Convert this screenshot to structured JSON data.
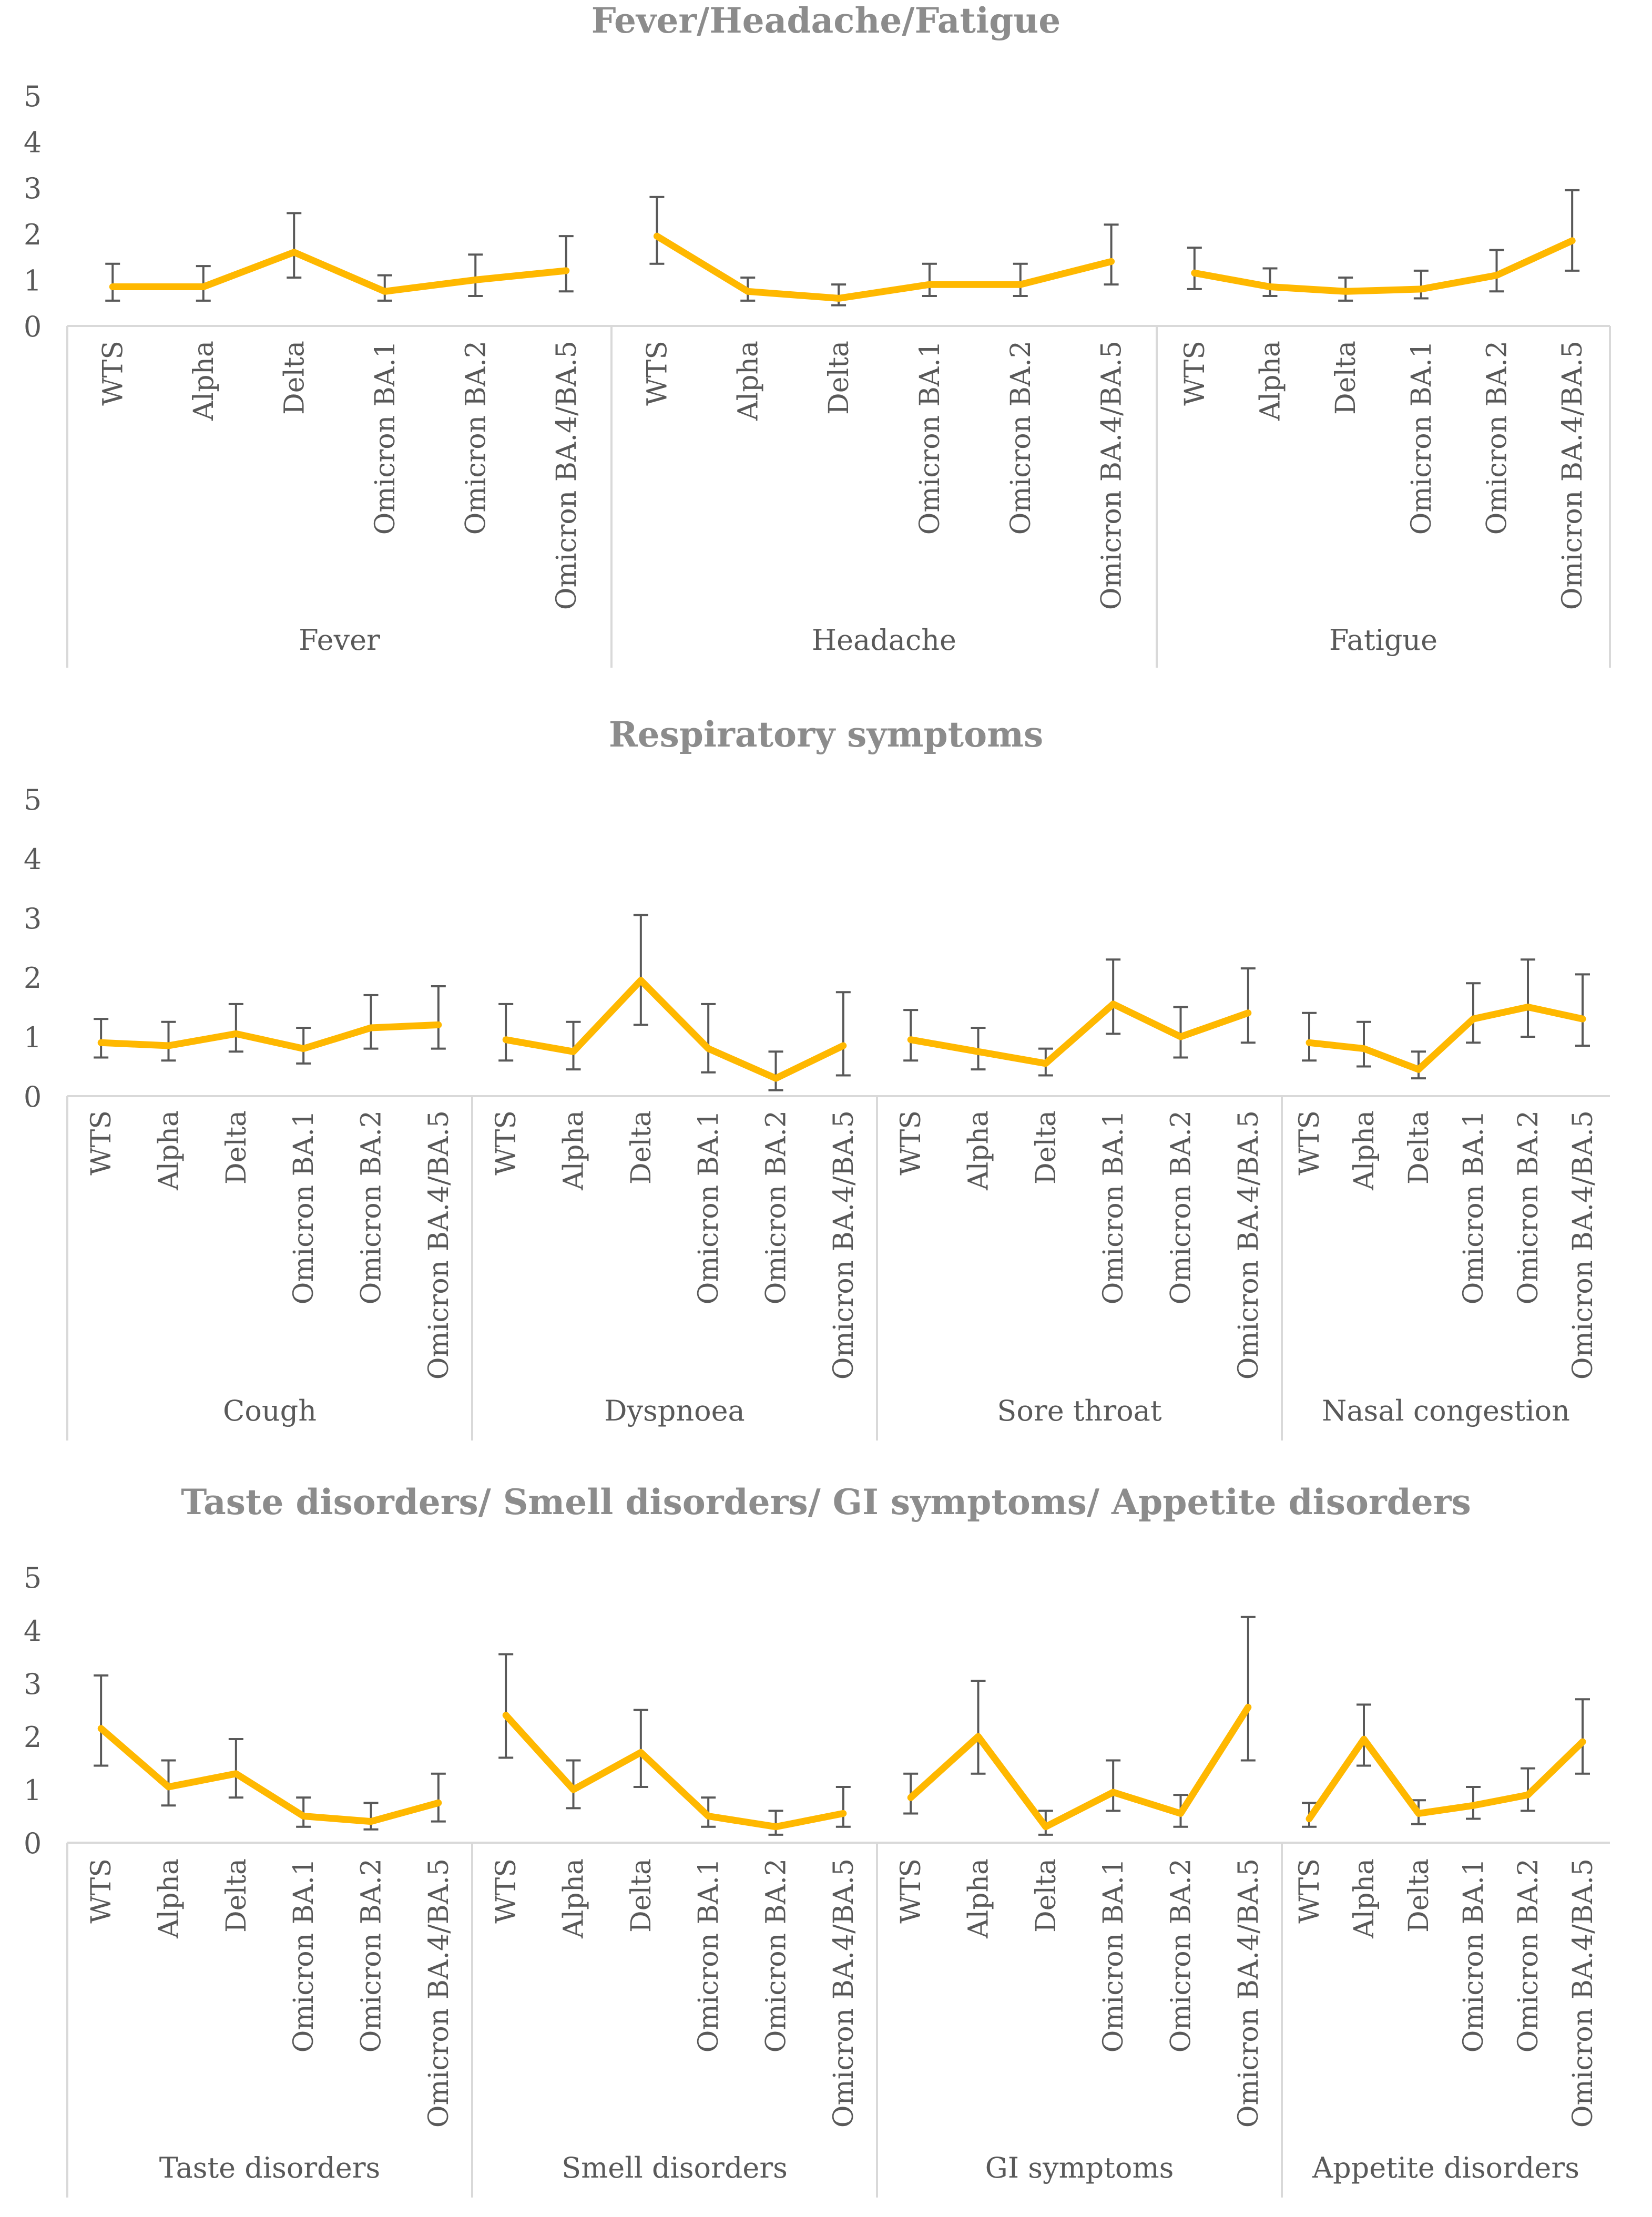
{
  "chart_data": [
    {
      "type": "line",
      "title": "Fever/Headache/Fatigue",
      "ylim": [
        0,
        5
      ],
      "yticks": [
        0,
        1,
        2,
        3,
        4,
        5
      ],
      "line_color": "#FFB800",
      "errorbar_color": "#595959",
      "subcategories": [
        "WTS",
        "Alpha",
        "Delta",
        "Omicron BA.1",
        "Omicron BA.2",
        "Omicron BA.4/BA.5"
      ],
      "groups": [
        {
          "name": "Fever",
          "values": [
            0.85,
            0.85,
            1.6,
            0.75,
            1.0,
            1.2
          ],
          "err_low": [
            0.55,
            0.55,
            1.05,
            0.55,
            0.65,
            0.75
          ],
          "err_high": [
            1.35,
            1.3,
            2.45,
            1.1,
            1.55,
            1.95
          ]
        },
        {
          "name": "Headache",
          "values": [
            1.95,
            0.75,
            0.6,
            0.9,
            0.9,
            1.4
          ],
          "err_low": [
            1.35,
            0.55,
            0.45,
            0.65,
            0.65,
            0.9
          ],
          "err_high": [
            2.8,
            1.05,
            0.9,
            1.35,
            1.35,
            2.2
          ]
        },
        {
          "name": "Fatigue",
          "values": [
            1.15,
            0.85,
            0.75,
            0.8,
            1.1,
            1.85
          ],
          "err_low": [
            0.8,
            0.65,
            0.55,
            0.6,
            0.75,
            1.2
          ],
          "err_high": [
            1.7,
            1.25,
            1.05,
            1.2,
            1.65,
            2.95
          ]
        }
      ]
    },
    {
      "type": "line",
      "title": "Respiratory symptoms",
      "ylim": [
        0,
        5
      ],
      "yticks": [
        0,
        1,
        2,
        3,
        4,
        5
      ],
      "line_color": "#FFB800",
      "errorbar_color": "#595959",
      "subcategories": [
        "WTS",
        "Alpha",
        "Delta",
        "Omicron BA.1",
        "Omicron BA.2",
        "Omicron BA.4/BA.5"
      ],
      "groups": [
        {
          "name": "Cough",
          "values": [
            0.9,
            0.85,
            1.05,
            0.8,
            1.15,
            1.2
          ],
          "err_low": [
            0.65,
            0.6,
            0.75,
            0.55,
            0.8,
            0.8
          ],
          "err_high": [
            1.3,
            1.25,
            1.55,
            1.15,
            1.7,
            1.85
          ]
        },
        {
          "name": "Dyspnoea",
          "values": [
            0.95,
            0.75,
            1.95,
            0.8,
            0.3,
            0.85
          ],
          "err_low": [
            0.6,
            0.45,
            1.2,
            0.4,
            0.1,
            0.35
          ],
          "err_high": [
            1.55,
            1.25,
            3.05,
            1.55,
            0.75,
            1.75
          ]
        },
        {
          "name": "Sore throat",
          "values": [
            0.95,
            0.75,
            0.55,
            1.55,
            1.0,
            1.4
          ],
          "err_low": [
            0.6,
            0.45,
            0.35,
            1.05,
            0.65,
            0.9
          ],
          "err_high": [
            1.45,
            1.15,
            0.8,
            2.3,
            1.5,
            2.15
          ]
        },
        {
          "name": "Nasal congestion",
          "values": [
            0.9,
            0.8,
            0.45,
            1.3,
            1.5,
            1.3
          ],
          "err_low": [
            0.6,
            0.5,
            0.3,
            0.9,
            1.0,
            0.85
          ],
          "err_high": [
            1.4,
            1.25,
            0.75,
            1.9,
            2.3,
            2.05
          ]
        }
      ]
    },
    {
      "type": "line",
      "title": "Taste disorders/ Smell disorders/ GI symptoms/ Appetite disorders",
      "ylim": [
        0,
        5
      ],
      "yticks": [
        0,
        1,
        2,
        3,
        4,
        5
      ],
      "line_color": "#FFB800",
      "errorbar_color": "#595959",
      "subcategories": [
        "WTS",
        "Alpha",
        "Delta",
        "Omicron BA.1",
        "Omicron BA.2",
        "Omicron BA.4/BA.5"
      ],
      "groups": [
        {
          "name": "Taste disorders",
          "values": [
            2.15,
            1.05,
            1.3,
            0.5,
            0.4,
            0.75
          ],
          "err_low": [
            1.45,
            0.7,
            0.85,
            0.3,
            0.25,
            0.4
          ],
          "err_high": [
            3.15,
            1.55,
            1.95,
            0.85,
            0.75,
            1.3
          ]
        },
        {
          "name": "Smell disorders",
          "values": [
            2.4,
            1.0,
            1.7,
            0.5,
            0.3,
            0.55
          ],
          "err_low": [
            1.6,
            0.65,
            1.05,
            0.3,
            0.15,
            0.3
          ],
          "err_high": [
            3.55,
            1.55,
            2.5,
            0.85,
            0.6,
            1.05
          ]
        },
        {
          "name": "GI symptoms",
          "values": [
            0.85,
            2.0,
            0.3,
            0.95,
            0.55,
            2.55
          ],
          "err_low": [
            0.55,
            1.3,
            0.15,
            0.6,
            0.3,
            1.55
          ],
          "err_high": [
            1.3,
            3.05,
            0.6,
            1.55,
            0.9,
            4.25
          ]
        },
        {
          "name": "Appetite disorders",
          "values": [
            0.45,
            1.95,
            0.55,
            0.7,
            0.9,
            1.9
          ],
          "err_low": [
            0.3,
            1.45,
            0.35,
            0.45,
            0.6,
            1.3
          ],
          "err_high": [
            0.75,
            2.6,
            0.8,
            1.05,
            1.4,
            2.7
          ]
        }
      ]
    }
  ]
}
